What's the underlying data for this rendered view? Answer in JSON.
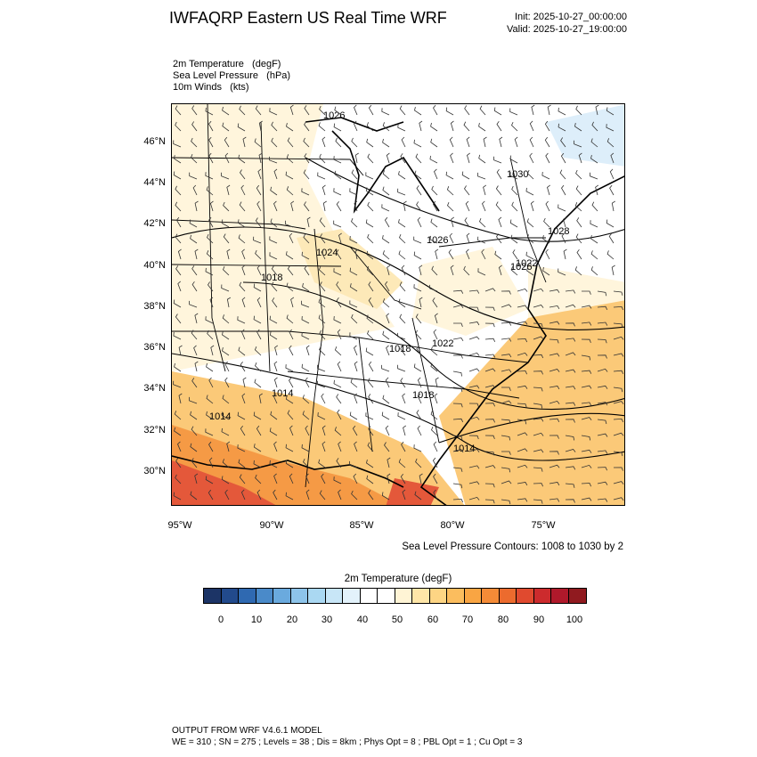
{
  "header": {
    "title": "IWFAQRP Eastern US Real Time WRF",
    "init": "Init: 2025-10-27_00:00:00",
    "valid": "Valid: 2025-10-27_19:00:00"
  },
  "fields": [
    "2m Temperature   (degF)",
    "Sea Level Pressure   (hPa)",
    "10m Winds   (kts)"
  ],
  "map": {
    "lat_labels": [
      "46°N",
      "44°N",
      "42°N",
      "40°N",
      "38°N",
      "36°N",
      "34°N",
      "32°N",
      "30°N"
    ],
    "lon_labels": [
      "95°W",
      "90°W",
      "85°W",
      "80°W",
      "75°W"
    ],
    "pressure_labels": [
      "1026",
      "1030",
      "1028",
      "1026",
      "1022",
      "1024",
      "1018",
      "1018",
      "1022",
      "1014",
      "1018",
      "1014",
      "1014",
      "1026"
    ],
    "colors": {
      "cold": "#ddeefa",
      "cool": "#ffffff",
      "mild": "#fff5dc",
      "warm": "#fbc978",
      "hot": "#f59a45",
      "very_hot": "#e4583a"
    }
  },
  "slp_note": "Sea Level Pressure Contours: 1008 to 1030 by 2",
  "colorbar": {
    "title": "2m Temperature  (degF)",
    "colors": [
      "#1c3466",
      "#224a8c",
      "#2f69b1",
      "#4a8ac9",
      "#6aaade",
      "#8dc4ea",
      "#aad8f2",
      "#c8e6f7",
      "#e3f2fb",
      "#ffffff",
      "#ffffff",
      "#fff4d5",
      "#ffe6a8",
      "#fdd584",
      "#fbbd5e",
      "#f9a543",
      "#f48b37",
      "#ec6b2e",
      "#e04a2f",
      "#cc2b2d",
      "#b0192b",
      "#901a1f"
    ],
    "ticks": [
      "0",
      "10",
      "20",
      "30",
      "40",
      "50",
      "60",
      "70",
      "80",
      "90",
      "100"
    ]
  },
  "footer": {
    "line1": "OUTPUT FROM WRF V4.6.1 MODEL",
    "line2": "WE = 310 ; SN = 275 ; Levels = 38 ; Dis = 8km ; Phys Opt = 8 ; PBL Opt = 1 ; Cu Opt = 3"
  }
}
